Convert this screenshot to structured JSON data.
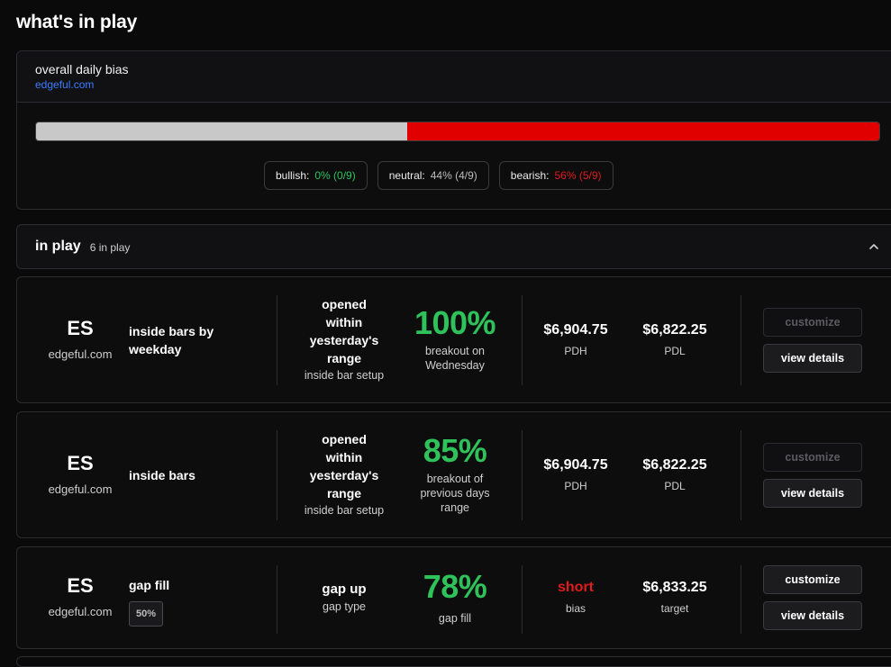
{
  "page": {
    "title": "what's in play"
  },
  "bias": {
    "title": "overall daily bias",
    "source": "edgeful.com",
    "neutral_fraction": 0.44,
    "bearish_fraction": 0.56,
    "colors": {
      "neutral": "#c8c8c8",
      "bearish": "#e00000",
      "bullish": "#2fc25b"
    },
    "chips": [
      {
        "label": "bullish:",
        "value": "0% (0/9)"
      },
      {
        "label": "neutral:",
        "value": "44% (4/9)"
      },
      {
        "label": "bearish:",
        "value": "56% (5/9)"
      }
    ]
  },
  "inplay": {
    "title": "in play",
    "count": "6 in play",
    "toggle_icon": "chevron-up-icon"
  },
  "cards": [
    {
      "ticker": "ES",
      "source": "edgeful.com",
      "setup": "inside bars by weekday",
      "condition_lines": [
        "opened",
        "within",
        "yesterday's",
        "range"
      ],
      "condition_sub": "inside bar setup",
      "percent": "100%",
      "percent_sub_lines": [
        "breakout on",
        "Wednesday"
      ],
      "level1": {
        "value": "$6,904.75",
        "label": "PDH"
      },
      "level2": {
        "value": "$6,822.25",
        "label": "PDL"
      },
      "customize_label": "customize",
      "view_label": "view details"
    },
    {
      "ticker": "ES",
      "source": "edgeful.com",
      "setup": "inside bars",
      "condition_lines": [
        "opened",
        "within",
        "yesterday's",
        "range"
      ],
      "condition_sub": "inside bar setup",
      "percent": "85%",
      "percent_sub_lines": [
        "breakout of",
        "previous days",
        "range"
      ],
      "level1": {
        "value": "$6,904.75",
        "label": "PDH"
      },
      "level2": {
        "value": "$6,822.25",
        "label": "PDL"
      },
      "customize_label": "customize",
      "view_label": "view details"
    },
    {
      "ticker": "ES",
      "source": "edgeful.com",
      "setup": "gap fill",
      "badge": "50%",
      "condition_lines": [
        "gap up"
      ],
      "condition_sub": "gap type",
      "percent": "78%",
      "percent_sub_lines": [
        "gap fill"
      ],
      "level1": {
        "value": "short",
        "label": "bias"
      },
      "level2": {
        "value": "$6,833.25",
        "label": "target"
      },
      "customize_label": "customize",
      "view_label": "view details"
    }
  ]
}
